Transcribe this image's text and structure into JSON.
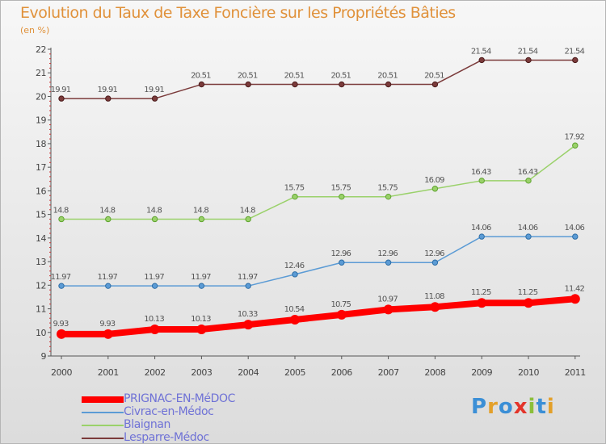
{
  "chart_data": {
    "type": "line",
    "title": "Evolution du Taux de Taxe Foncière sur les Propriétés Bâties",
    "ylabel": "(en %)",
    "xlabel": "",
    "x": [
      "2000",
      "2001",
      "2002",
      "2003",
      "2004",
      "2005",
      "2006",
      "2007",
      "2008",
      "2009",
      "2010",
      "2011"
    ],
    "ylim": [
      9,
      22
    ],
    "yticks": [
      "9",
      "10",
      "11",
      "12",
      "13",
      "14",
      "15",
      "16",
      "17",
      "18",
      "19",
      "20",
      "21",
      "22"
    ],
    "grid": false,
    "legend": "bottom-left",
    "series": [
      {
        "name": "PRIGNAC-EN-MéDOC",
        "color": "#ff0000",
        "values": [
          9.93,
          9.93,
          10.13,
          10.13,
          10.33,
          10.54,
          10.75,
          10.97,
          11.08,
          11.25,
          11.25,
          11.42
        ],
        "labels": [
          "9.93",
          "9.93",
          "10.13",
          "10.13",
          "10.33",
          "10.54",
          "10.75",
          "10.97",
          "11.08",
          "11.25",
          "11.25",
          "11.42"
        ]
      },
      {
        "name": "Civrac-en-Médoc",
        "color": "#5b9bd5",
        "values": [
          11.97,
          11.97,
          11.97,
          11.97,
          11.97,
          12.46,
          12.96,
          12.96,
          12.96,
          14.06,
          14.06,
          14.06
        ],
        "labels": [
          "11.97",
          "11.97",
          "11.97",
          "11.97",
          "11.97",
          "12.46",
          "12.96",
          "12.96",
          "12.96",
          "14.06",
          "14.06",
          "14.06"
        ]
      },
      {
        "name": "Blaignan",
        "color": "#9ad16a",
        "values": [
          14.8,
          14.8,
          14.8,
          14.8,
          14.8,
          15.75,
          15.75,
          15.75,
          16.09,
          16.43,
          16.43,
          17.92
        ],
        "labels": [
          "14.8",
          "14.8",
          "14.8",
          "14.8",
          "14.8",
          "15.75",
          "15.75",
          "15.75",
          "16.09",
          "16.43",
          "16.43",
          "17.92"
        ]
      },
      {
        "name": "Lesparre-Médoc",
        "color": "#7b3b3b",
        "values": [
          19.91,
          19.91,
          19.91,
          20.51,
          20.51,
          20.51,
          20.51,
          20.51,
          20.51,
          21.54,
          21.54,
          21.54
        ],
        "labels": [
          "19.91",
          "19.91",
          "19.91",
          "20.51",
          "20.51",
          "20.51",
          "20.51",
          "20.51",
          "20.51",
          "21.54",
          "21.54",
          "21.54"
        ]
      }
    ]
  },
  "logo": {
    "text": "Proxiti"
  }
}
